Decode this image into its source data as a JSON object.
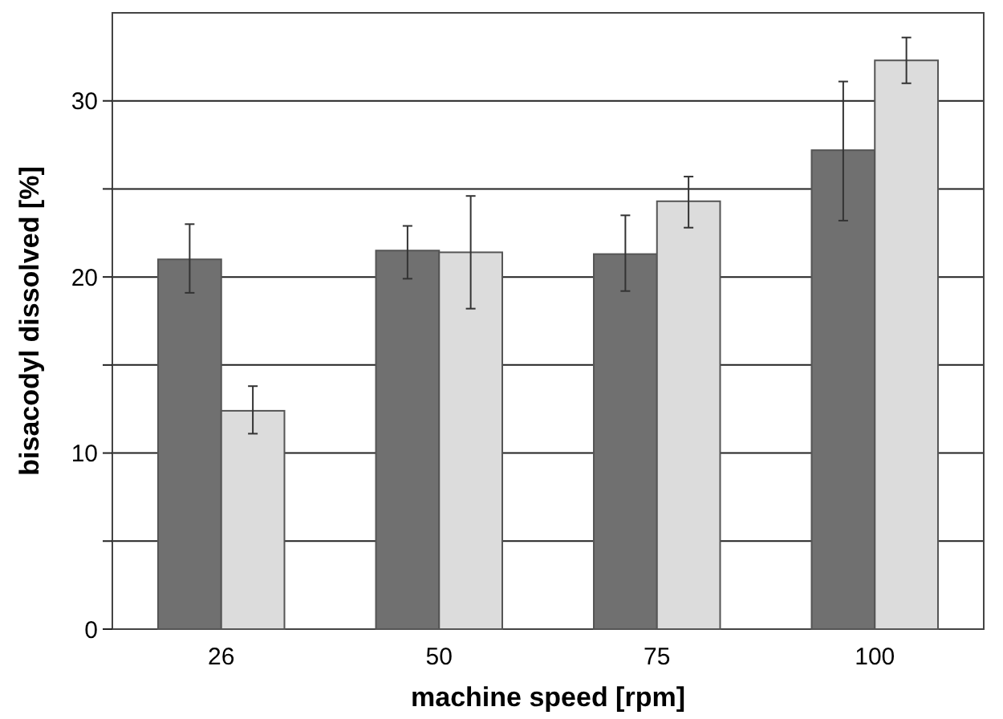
{
  "chart_data": {
    "type": "bar",
    "xlabel": "machine speed [rpm]",
    "ylabel": "bisacodyl dissolved [%]",
    "categories": [
      "26",
      "50",
      "75",
      "100"
    ],
    "series": [
      {
        "color": "#707070",
        "values": [
          21.0,
          21.5,
          21.3,
          27.2
        ],
        "errors": [
          [
            19.1,
            23.0
          ],
          [
            19.9,
            22.9
          ],
          [
            19.2,
            23.5
          ],
          [
            23.2,
            31.1
          ]
        ]
      },
      {
        "color": "#dcdcdc",
        "values": [
          12.4,
          21.4,
          24.3,
          32.3
        ],
        "errors": [
          [
            11.1,
            13.8
          ],
          [
            18.2,
            24.6
          ],
          [
            22.8,
            25.7
          ],
          [
            31.0,
            33.6
          ]
        ]
      }
    ],
    "ylim": [
      0,
      35
    ],
    "yticks": [
      0,
      {
        "value": 5,
        "label": null
      },
      10,
      {
        "value": 15,
        "label": null
      },
      20,
      {
        "value": 25,
        "label": null
      },
      30
    ],
    "grid": "y"
  }
}
